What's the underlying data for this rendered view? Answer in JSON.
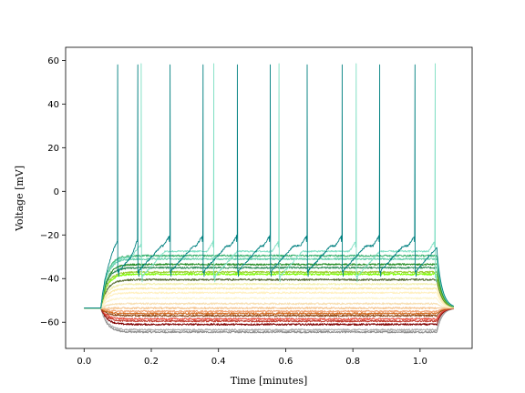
{
  "chart_data": {
    "type": "line",
    "title": "",
    "xlabel": "Time [minutes]",
    "ylabel": "Voltage [mV]",
    "xlim": [
      -0.055,
      1.155
    ],
    "ylim": [
      -72,
      66
    ],
    "xticks": [
      0.0,
      0.2,
      0.4,
      0.6,
      0.8,
      1.0
    ],
    "xtick_labels": [
      "0.0",
      "0.2",
      "0.4",
      "0.6",
      "0.8",
      "1.0"
    ],
    "yticks": [
      -60,
      -40,
      -20,
      0,
      20,
      40,
      60
    ],
    "ytick_labels": [
      "−60",
      "−40",
      "−20",
      "0",
      "20",
      "40",
      "60"
    ],
    "grid": false,
    "legend": "none",
    "stimulus": {
      "onset_min": 0.05,
      "offset_min": 1.05,
      "rest_mV": -53.5,
      "end_min": 1.1
    },
    "series": [
      {
        "color": "#8c8c8c",
        "steady_mV": -64.5
      },
      {
        "color": "#a9a9a9",
        "steady_mV": -63.5
      },
      {
        "color": "#800000",
        "steady_mV": -61.0
      },
      {
        "color": "#c0392b",
        "steady_mV": -59.5
      },
      {
        "color": "#e74c3c",
        "steady_mV": -58.5
      },
      {
        "color": "#8b4513",
        "steady_mV": -57.0
      },
      {
        "color": "#d2691e",
        "steady_mV": -56.0
      },
      {
        "color": "#f0a070",
        "steady_mV": -55.0
      },
      {
        "color": "#f4c28c",
        "steady_mV": -53.5
      },
      {
        "color": "#f7deb0",
        "steady_mV": -51.5
      },
      {
        "color": "#fdf5d0",
        "steady_mV": -49.0
      },
      {
        "color": "#fff0c0",
        "steady_mV": -46.5
      },
      {
        "color": "#fbe8a6",
        "steady_mV": -44.5
      },
      {
        "color": "#f3f0b0",
        "steady_mV": -42.5
      },
      {
        "color": "#556b2f",
        "steady_mV": -40.5
      },
      {
        "color": "#7cfc00",
        "steady_mV": -38.0
      },
      {
        "color": "#9acd32",
        "steady_mV": -37.0
      },
      {
        "color": "#2e8b57",
        "steady_mV": -35.0
      },
      {
        "color": "#228b22",
        "steady_mV": -33.5
      },
      {
        "color": "#66cdaa",
        "steady_mV": -31.0
      },
      {
        "color": "#3cb371",
        "steady_mV": -29.5
      },
      {
        "color": "#7fdfc3",
        "steady_mV": -30.0,
        "spike_times_min": [
          0.17,
          0.386,
          0.58,
          0.81,
          1.045
        ],
        "spike_peak_mV": 58.5,
        "ahp_min_mV": -27.5
      },
      {
        "color": "#008080",
        "steady_mV": -27.0,
        "spike_times_min": [
          0.1,
          0.16,
          0.256,
          0.354,
          0.456,
          0.554,
          0.664,
          0.768,
          0.88,
          0.985
        ],
        "spike_peak_mV": 58.0,
        "ahp_min_mV": -25.0
      }
    ]
  }
}
